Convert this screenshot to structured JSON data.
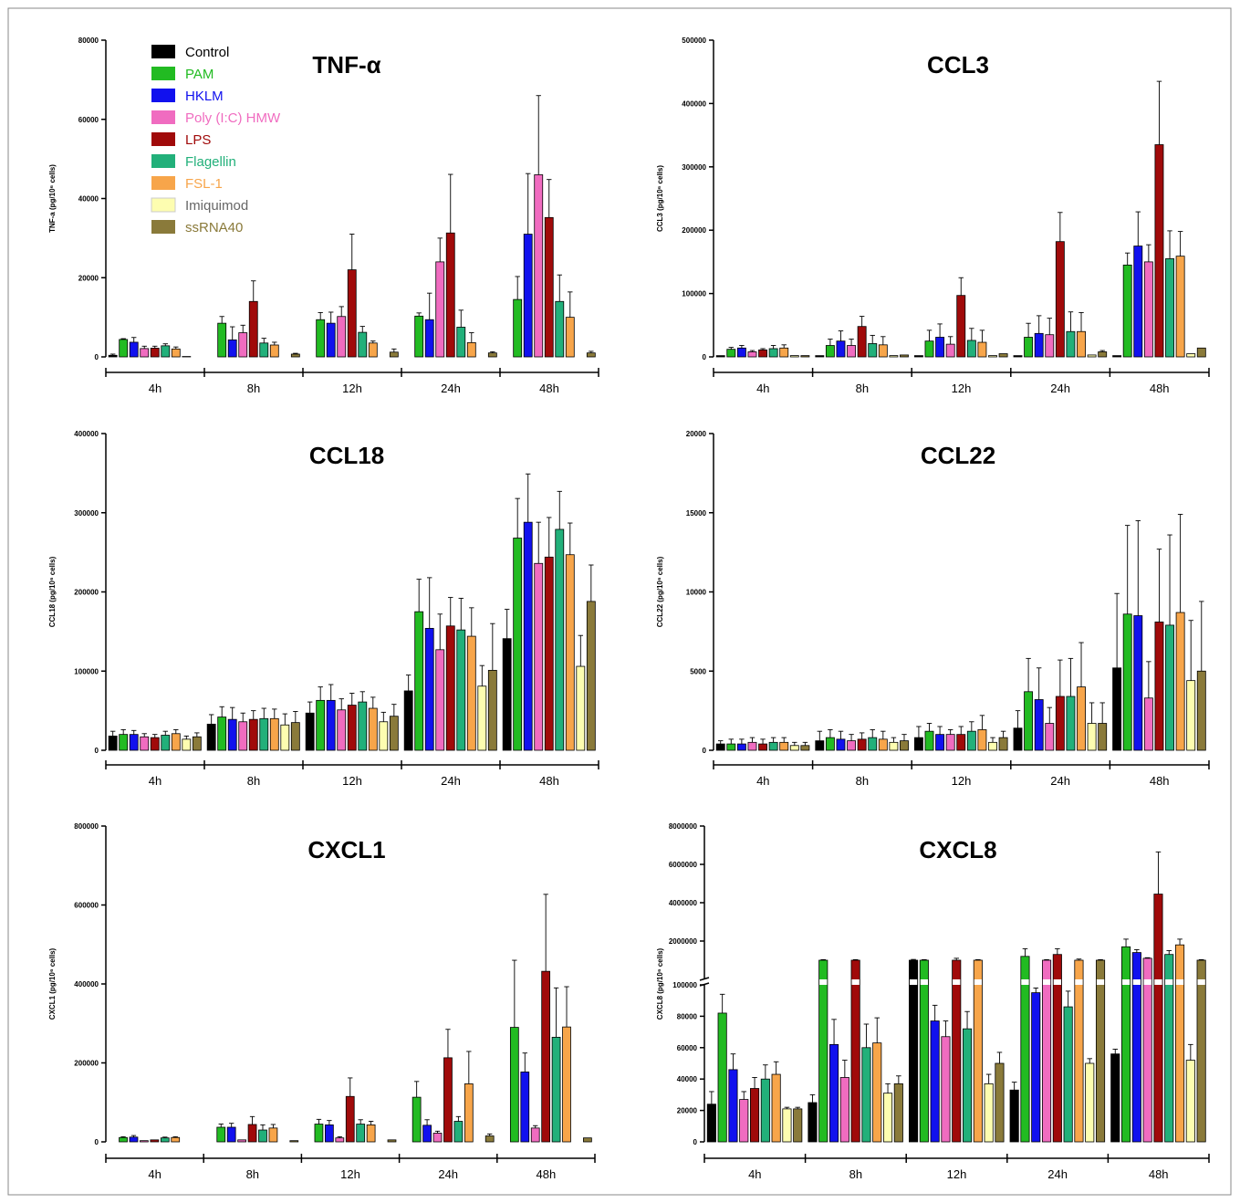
{
  "colors": {
    "Control": "#000000",
    "PAM": "#22bb22",
    "HKLM": "#1111ee",
    "Poly (I:C) HMW": "#f06cc0",
    "LPS": "#a00a0a",
    "Flagellin": "#22b07a",
    "FSL-1": "#f7a54a",
    "Imiquimod": "#fdfdb0",
    "ssRNA40": "#8a7a3a"
  },
  "legend": [
    "Control",
    "PAM",
    "HKLM",
    "Poly (I:C) HMW",
    "LPS",
    "Flagellin",
    "FSL-1",
    "Imiquimod",
    "ssRNA40"
  ],
  "chart_data": [
    {
      "type": "bar",
      "title": "TNF-α",
      "ylabel": "TNF-a (pg/10⁶ cells)",
      "categories": [
        "4h",
        "8h",
        "12h",
        "24h",
        "48h"
      ],
      "ylim": [
        0,
        80000
      ],
      "yticks": [
        0,
        20000,
        40000,
        60000,
        80000
      ],
      "series": [
        {
          "name": "Control",
          "values": [
            400,
            0,
            0,
            0,
            0
          ],
          "errors": [
            300,
            0,
            0,
            0,
            0
          ]
        },
        {
          "name": "PAM",
          "values": [
            4400,
            8500,
            9400,
            10300,
            14500
          ],
          "errors": [
            200,
            1700,
            1800,
            800,
            5800
          ]
        },
        {
          "name": "HKLM",
          "values": [
            3700,
            4300,
            8500,
            9400,
            31000
          ],
          "errors": [
            1200,
            3300,
            2800,
            6700,
            15300
          ]
        },
        {
          "name": "Poly (I:C) HMW",
          "values": [
            2100,
            6100,
            10200,
            24000,
            46000
          ],
          "errors": [
            600,
            1900,
            2500,
            6000,
            20000
          ]
        },
        {
          "name": "LPS",
          "values": [
            2200,
            14000,
            22000,
            31300,
            35200
          ],
          "errors": [
            500,
            5200,
            9000,
            14800,
            9600
          ]
        },
        {
          "name": "Flagellin",
          "values": [
            2800,
            3500,
            6200,
            7500,
            14000
          ],
          "errors": [
            500,
            1200,
            1500,
            4300,
            6700
          ]
        },
        {
          "name": "FSL-1",
          "values": [
            2000,
            3000,
            3500,
            3600,
            10000
          ],
          "errors": [
            500,
            700,
            500,
            2500,
            6400
          ]
        },
        {
          "name": "Imiquimod",
          "values": [
            100,
            0,
            0,
            0,
            0
          ],
          "errors": [
            0,
            0,
            0,
            0,
            0
          ]
        },
        {
          "name": "ssRNA40",
          "values": [
            0,
            700,
            1200,
            1000,
            1000
          ],
          "errors": [
            0,
            200,
            800,
            300,
            400
          ]
        }
      ]
    },
    {
      "type": "bar",
      "title": "CCL3",
      "ylabel": "CCL3 (pg/10⁶ cells)",
      "categories": [
        "4h",
        "8h",
        "12h",
        "24h",
        "48h"
      ],
      "ylim": [
        0,
        500000
      ],
      "yticks": [
        0,
        100000,
        200000,
        300000,
        400000,
        500000
      ],
      "series": [
        {
          "name": "Control",
          "values": [
            2000,
            2000,
            2000,
            2000,
            2000
          ],
          "errors": [
            0,
            0,
            0,
            0,
            0
          ]
        },
        {
          "name": "PAM",
          "values": [
            12000,
            18000,
            25000,
            31000,
            145000
          ],
          "errors": [
            3000,
            10000,
            17000,
            22000,
            19000
          ]
        },
        {
          "name": "HKLM",
          "values": [
            14000,
            25000,
            31000,
            37000,
            175000
          ],
          "errors": [
            4000,
            16000,
            21000,
            28000,
            54000
          ]
        },
        {
          "name": "Poly (I:C) HMW",
          "values": [
            8000,
            18000,
            20000,
            35000,
            150000
          ],
          "errors": [
            2000,
            10000,
            12000,
            26000,
            27000
          ]
        },
        {
          "name": "LPS",
          "values": [
            11000,
            48000,
            97000,
            182000,
            335000
          ],
          "errors": [
            2000,
            16000,
            28000,
            46000,
            100000
          ]
        },
        {
          "name": "Flagellin",
          "values": [
            13000,
            21000,
            26000,
            40000,
            155000
          ],
          "errors": [
            5000,
            13000,
            19000,
            31000,
            44000
          ]
        },
        {
          "name": "FSL-1",
          "values": [
            14000,
            19000,
            23000,
            40000,
            159000
          ],
          "errors": [
            5000,
            13000,
            19000,
            30000,
            39000
          ]
        },
        {
          "name": "Imiquimod",
          "values": [
            2000,
            2000,
            2000,
            3000,
            5000
          ],
          "errors": [
            0,
            0,
            0,
            0,
            0
          ]
        },
        {
          "name": "ssRNA40",
          "values": [
            2000,
            3000,
            5000,
            8000,
            14000
          ],
          "errors": [
            0,
            0,
            0,
            2000,
            0
          ]
        }
      ]
    },
    {
      "type": "bar",
      "title": "CCL18",
      "ylabel": "CCL18 (pg/10⁶ cells)",
      "categories": [
        "4h",
        "8h",
        "12h",
        "24h",
        "48h"
      ],
      "ylim": [
        0,
        400000
      ],
      "yticks": [
        0,
        100000,
        200000,
        300000,
        400000
      ],
      "series": [
        {
          "name": "Control",
          "values": [
            18000,
            33000,
            47000,
            75000,
            141000
          ],
          "errors": [
            6000,
            12000,
            14000,
            20000,
            37000
          ]
        },
        {
          "name": "PAM",
          "values": [
            20000,
            42000,
            63000,
            175000,
            268000
          ],
          "errors": [
            6000,
            13000,
            17000,
            41000,
            50000
          ]
        },
        {
          "name": "HKLM",
          "values": [
            20000,
            39000,
            63000,
            154000,
            288000
          ],
          "errors": [
            5000,
            15000,
            20000,
            64000,
            61000
          ]
        },
        {
          "name": "Poly (I:C) HMW",
          "values": [
            17000,
            36000,
            51000,
            127000,
            236000
          ],
          "errors": [
            4000,
            11000,
            14000,
            45000,
            52000
          ]
        },
        {
          "name": "LPS",
          "values": [
            16000,
            39000,
            57000,
            157000,
            244000
          ],
          "errors": [
            4000,
            11000,
            15000,
            36000,
            50000
          ]
        },
        {
          "name": "Flagellin",
          "values": [
            19000,
            40000,
            61000,
            152000,
            279000
          ],
          "errors": [
            5000,
            13000,
            13000,
            40000,
            48000
          ]
        },
        {
          "name": "FSL-1",
          "values": [
            21000,
            40000,
            53000,
            144000,
            247000
          ],
          "errors": [
            5000,
            12000,
            14000,
            36000,
            40000
          ]
        },
        {
          "name": "Imiquimod",
          "values": [
            14000,
            32000,
            36000,
            81000,
            106000
          ],
          "errors": [
            4000,
            14000,
            12000,
            26000,
            39000
          ]
        },
        {
          "name": "ssRNA40",
          "values": [
            17000,
            35000,
            43000,
            101000,
            188000
          ],
          "errors": [
            5000,
            14000,
            15000,
            59000,
            46000
          ]
        }
      ]
    },
    {
      "type": "bar",
      "title": "CCL22",
      "ylabel": "CCL22 (pg/10⁶ cells)",
      "categories": [
        "4h",
        "8h",
        "12h",
        "24h",
        "48h"
      ],
      "ylim": [
        0,
        20000
      ],
      "yticks": [
        0,
        5000,
        10000,
        15000,
        20000
      ],
      "series": [
        {
          "name": "Control",
          "values": [
            400,
            600,
            800,
            1400,
            5200
          ],
          "errors": [
            200,
            600,
            700,
            1100,
            4700
          ]
        },
        {
          "name": "PAM",
          "values": [
            400,
            800,
            1200,
            3700,
            8600
          ],
          "errors": [
            300,
            500,
            500,
            2100,
            5600
          ]
        },
        {
          "name": "HKLM",
          "values": [
            400,
            700,
            1000,
            3200,
            8500
          ],
          "errors": [
            300,
            500,
            500,
            2000,
            6000
          ]
        },
        {
          "name": "Poly (I:C) HMW",
          "values": [
            500,
            600,
            1000,
            1700,
            3300
          ],
          "errors": [
            300,
            400,
            300,
            1000,
            2300
          ]
        },
        {
          "name": "LPS",
          "values": [
            400,
            700,
            1000,
            3400,
            8100
          ],
          "errors": [
            300,
            400,
            500,
            2300,
            4600
          ]
        },
        {
          "name": "Flagellin",
          "values": [
            500,
            800,
            1200,
            3400,
            7900
          ],
          "errors": [
            300,
            500,
            600,
            2400,
            5700
          ]
        },
        {
          "name": "FSL-1",
          "values": [
            500,
            700,
            1300,
            4000,
            8700
          ],
          "errors": [
            300,
            500,
            900,
            2800,
            6200
          ]
        },
        {
          "name": "Imiquimod",
          "values": [
            300,
            500,
            500,
            1700,
            4400
          ],
          "errors": [
            200,
            300,
            300,
            1300,
            3800
          ]
        },
        {
          "name": "ssRNA40",
          "values": [
            300,
            600,
            800,
            1700,
            5000
          ],
          "errors": [
            200,
            400,
            400,
            1300,
            4400
          ]
        }
      ]
    },
    {
      "type": "bar",
      "title": "CXCL1",
      "ylabel": "CXCL1 (pg/10⁶ cells)",
      "categories": [
        "4h",
        "8h",
        "12h",
        "24h",
        "48h"
      ],
      "ylim": [
        0,
        800000
      ],
      "yticks": [
        0,
        200000,
        400000,
        600000,
        800000
      ],
      "series": [
        {
          "name": "Control",
          "values": [
            0,
            0,
            0,
            0,
            0
          ],
          "errors": [
            0,
            0,
            0,
            0,
            0
          ]
        },
        {
          "name": "PAM",
          "values": [
            11000,
            37000,
            45000,
            113000,
            290000
          ],
          "errors": [
            2000,
            8000,
            12000,
            40000,
            170000
          ]
        },
        {
          "name": "HKLM",
          "values": [
            12000,
            37000,
            43000,
            42000,
            177000
          ],
          "errors": [
            4000,
            10000,
            11000,
            14000,
            48000
          ]
        },
        {
          "name": "Poly (I:C) HMW",
          "values": [
            3000,
            5000,
            10000,
            22000,
            35000
          ],
          "errors": [
            0,
            0,
            3000,
            5000,
            6000
          ]
        },
        {
          "name": "LPS",
          "values": [
            5000,
            44000,
            115000,
            213000,
            432000
          ],
          "errors": [
            0,
            20000,
            47000,
            72000,
            195000
          ]
        },
        {
          "name": "Flagellin",
          "values": [
            10000,
            30000,
            45000,
            52000,
            265000
          ],
          "errors": [
            2000,
            13000,
            11000,
            12000,
            125000
          ]
        },
        {
          "name": "FSL-1",
          "values": [
            11000,
            35000,
            43000,
            147000,
            291000
          ],
          "errors": [
            2000,
            9000,
            9000,
            82000,
            102000
          ]
        },
        {
          "name": "Imiquimod",
          "values": [
            0,
            0,
            0,
            0,
            0
          ],
          "errors": [
            0,
            0,
            0,
            0,
            0
          ]
        },
        {
          "name": "ssRNA40",
          "values": [
            0,
            3000,
            5000,
            15000,
            10000
          ],
          "errors": [
            0,
            0,
            0,
            5000,
            0
          ]
        }
      ]
    },
    {
      "type": "bar",
      "title": "CXCL8",
      "ylabel": "CXCL8 (pg/10⁶ cells)",
      "categories": [
        "4h",
        "8h",
        "12h",
        "24h",
        "48h"
      ],
      "axis_break": true,
      "ylim_lower": [
        0,
        100000
      ],
      "yticks_lower": [
        0,
        20000,
        40000,
        60000,
        80000,
        100000
      ],
      "ylim_upper": [
        0,
        8000000
      ],
      "yticks_upper": [
        2000000,
        4000000,
        6000000,
        8000000
      ],
      "series": [
        {
          "name": "Control",
          "values": [
            24000,
            25000,
            1000000,
            33000,
            56000
          ],
          "errors": [
            8000,
            5000,
            40000,
            5000,
            3000
          ]
        },
        {
          "name": "PAM",
          "values": [
            82000,
            1000000,
            1000000,
            1200000,
            1700000
          ],
          "errors": [
            12000,
            30000,
            30000,
            400000,
            400000
          ]
        },
        {
          "name": "HKLM",
          "values": [
            46000,
            62000,
            77000,
            95000,
            1400000
          ],
          "errors": [
            10000,
            16000,
            10000,
            3000,
            150000
          ]
        },
        {
          "name": "Poly (I:C) HMW",
          "values": [
            27000,
            41000,
            67000,
            1000000,
            1100000
          ],
          "errors": [
            5000,
            11000,
            10000,
            30000,
            30000
          ]
        },
        {
          "name": "LPS",
          "values": [
            34000,
            1000000,
            1000000,
            1300000,
            4450000
          ],
          "errors": [
            7000,
            30000,
            100000,
            300000,
            2200000
          ]
        },
        {
          "name": "Flagellin",
          "values": [
            40000,
            60000,
            72000,
            86000,
            1300000
          ],
          "errors": [
            9000,
            15000,
            11000,
            10000,
            200000
          ]
        },
        {
          "name": "FSL-1",
          "values": [
            43000,
            63000,
            1000000,
            1000000,
            1800000
          ],
          "errors": [
            8000,
            16000,
            30000,
            60000,
            300000
          ]
        },
        {
          "name": "Imiquimod",
          "values": [
            21000,
            31000,
            37000,
            50000,
            52000
          ],
          "errors": [
            1000,
            6000,
            6000,
            3000,
            10000
          ]
        },
        {
          "name": "ssRNA40",
          "values": [
            21000,
            37000,
            50000,
            1000000,
            1000000
          ],
          "errors": [
            1000,
            5000,
            7000,
            30000,
            30000
          ]
        }
      ]
    }
  ]
}
